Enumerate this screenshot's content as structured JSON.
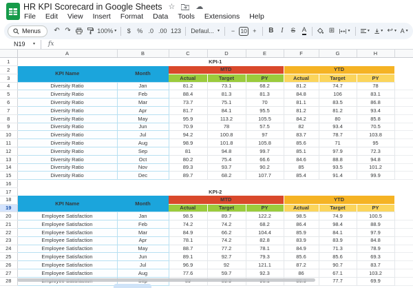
{
  "header": {
    "doc_title": "HR KPI Scorecard in Google Sheets",
    "menu_items": [
      "File",
      "Edit",
      "View",
      "Insert",
      "Format",
      "Data",
      "Tools",
      "Extensions",
      "Help"
    ]
  },
  "toolbar": {
    "menus_label": "Menus",
    "zoom_level": "100%",
    "currency_label": "$",
    "percent_label": "%",
    "decrease_decimal_label": ".0",
    "increase_decimal_label": ".00",
    "number_format_label": "123",
    "font_name": "Defaul...",
    "minus_label": "−",
    "font_size": "10",
    "plus_label": "+",
    "bold_label": "B",
    "italic_label": "I",
    "strikethrough_label": "S",
    "text_color_label": "A",
    "text_rotation_label": "A"
  },
  "formula_bar": {
    "name_box_value": "N19",
    "fx_label": "fx"
  },
  "icons": {
    "star": "☆",
    "cloud": "☁",
    "undo": "↶",
    "redo": "↷",
    "borders": "⊞",
    "text_wrap": "↩",
    "caret": "▾"
  },
  "colors": {
    "header_blue": "#1BA5DC",
    "mtd_red": "#D9482B",
    "ytd_orange": "#F5B324",
    "mtd_sub_green": "#9BCB3C",
    "ytd_sub_yellow": "#FBD55C",
    "selected_row_highlight": "#D3E3FD",
    "sheets_logo_green": "#169B4A"
  },
  "grid": {
    "column_headers": [
      "A",
      "B",
      "C",
      "D",
      "E",
      "F",
      "G",
      "H"
    ],
    "selected_row": 19,
    "row_count": 28
  },
  "table1": {
    "kpi_label": "KPI-1",
    "headers": {
      "kpi_name": "KPI Name",
      "month": "Month",
      "mtd": "MTD",
      "ytd": "YTD",
      "sub": [
        "Actual",
        "Target",
        "PY"
      ]
    },
    "rows": [
      {
        "name": "Diversity Ratio",
        "month": "Jan",
        "values": [
          81.2,
          73.1,
          68.2,
          81.2,
          74.7,
          78
        ]
      },
      {
        "name": "Diversity Ratio",
        "month": "Feb",
        "values": [
          88.4,
          81.3,
          81.3,
          84.8,
          106,
          83.1
        ]
      },
      {
        "name": "Diversity Ratio",
        "month": "Mar",
        "values": [
          73.7,
          75.1,
          70,
          81.1,
          83.5,
          86.8
        ]
      },
      {
        "name": "Diversity Ratio",
        "month": "Apr",
        "values": [
          81.7,
          84.1,
          95.5,
          81.2,
          81.2,
          93.4
        ]
      },
      {
        "name": "Diversity Ratio",
        "month": "May",
        "values": [
          95.9,
          113.2,
          105.5,
          84.2,
          80,
          85.8
        ]
      },
      {
        "name": "Diversity Ratio",
        "month": "Jun",
        "values": [
          70.9,
          78,
          57.5,
          82,
          93.4,
          70.5
        ]
      },
      {
        "name": "Diversity Ratio",
        "month": "Jul",
        "values": [
          94.2,
          100.8,
          97,
          83.7,
          78.7,
          103.8
        ]
      },
      {
        "name": "Diversity Ratio",
        "month": "Aug",
        "values": [
          98.9,
          101.8,
          105.8,
          85.6,
          71,
          95
        ]
      },
      {
        "name": "Diversity Ratio",
        "month": "Sep",
        "values": [
          81,
          94.8,
          99.7,
          85.1,
          97.9,
          72.3
        ]
      },
      {
        "name": "Diversity Ratio",
        "month": "Oct",
        "values": [
          80.2,
          75.4,
          66.6,
          84.6,
          88.8,
          94.8
        ]
      },
      {
        "name": "Diversity Ratio",
        "month": "Nov",
        "values": [
          89.3,
          93.7,
          90.2,
          85,
          93.5,
          101.2
        ]
      },
      {
        "name": "Diversity Ratio",
        "month": "Dec",
        "values": [
          89.7,
          68.2,
          107.7,
          85.4,
          91.4,
          99.9
        ]
      }
    ]
  },
  "table2": {
    "kpi_label": "KPI-2",
    "headers": {
      "kpi_name": "KPI Name",
      "month": "Month",
      "mtd": "MTD",
      "ytd": "YTD",
      "sub": [
        "Actual",
        "Target",
        "PY"
      ]
    },
    "rows": [
      {
        "name": "Employee Satisfaction",
        "month": "Jan",
        "values": [
          98.5,
          89.7,
          122.2,
          98.5,
          74.9,
          100.5
        ]
      },
      {
        "name": "Employee Satisfaction",
        "month": "Feb",
        "values": [
          74.2,
          74.2,
          68.2,
          86.4,
          98.4,
          88.9
        ]
      },
      {
        "name": "Employee Satisfaction",
        "month": "Mar",
        "values": [
          84.9,
          66.2,
          104.4,
          85.9,
          84.1,
          97.9
        ]
      },
      {
        "name": "Employee Satisfaction",
        "month": "Apr",
        "values": [
          78.1,
          74.2,
          82.8,
          83.9,
          83.9,
          84.8
        ]
      },
      {
        "name": "Employee Satisfaction",
        "month": "May",
        "values": [
          88.7,
          77.2,
          78.1,
          84.9,
          71.3,
          78.9
        ]
      },
      {
        "name": "Employee Satisfaction",
        "month": "Jun",
        "values": [
          89.1,
          92.7,
          79.3,
          85.6,
          85.6,
          69.3
        ]
      },
      {
        "name": "Employee Satisfaction",
        "month": "Jul",
        "values": [
          96.9,
          92,
          121.1,
          87.2,
          90.7,
          83.7
        ]
      },
      {
        "name": "Employee Satisfaction",
        "month": "Aug",
        "values": [
          77.6,
          59.7,
          92.3,
          86,
          67.1,
          103.2
        ]
      },
      {
        "name": "Employee Satisfaction",
        "month": "Sep",
        "values": [
          89,
          89.9,
          96.1,
          86.3,
          77.7,
          69.9
        ]
      }
    ]
  }
}
